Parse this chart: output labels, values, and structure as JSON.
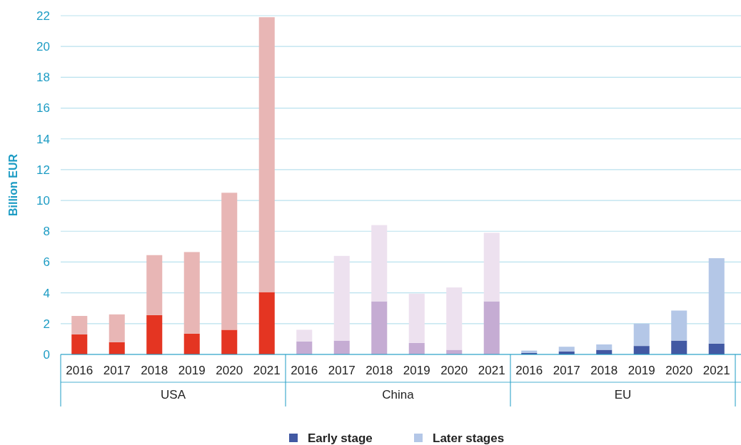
{
  "chart_data": {
    "type": "bar",
    "stacked": true,
    "ylabel": "Billion EUR",
    "categories": [
      "2016",
      "2017",
      "2018",
      "2019",
      "2020",
      "2021",
      "2016",
      "2017",
      "2018",
      "2019",
      "2020",
      "2021",
      "2016",
      "2017",
      "2018",
      "2019",
      "2020",
      "2021"
    ],
    "annotations": [
      "USA",
      "China",
      "EU"
    ],
    "series": [
      {
        "name": "Early stage",
        "color": "#4259a3",
        "colors": [
          "#e43522",
          "#e43522",
          "#e43522",
          "#e43522",
          "#e43522",
          "#e43522",
          "#c5acd3",
          "#c5acd3",
          "#c5acd3",
          "#c5acd3",
          "#c5acd3",
          "#c5acd3",
          "#4259a3",
          "#4259a3",
          "#4259a3",
          "#4259a3",
          "#4259a3",
          "#4259a3"
        ],
        "values": [
          1.3,
          0.8,
          2.55,
          1.35,
          1.6,
          4.05,
          0.85,
          0.9,
          3.45,
          0.75,
          0.3,
          3.45,
          0.1,
          0.2,
          0.3,
          0.55,
          0.9,
          0.7
        ]
      },
      {
        "name": "Later stages",
        "color": "#b4c7e7",
        "colors": [
          "#e8b6b5",
          "#e8b6b5",
          "#e8b6b5",
          "#e8b6b5",
          "#e8b6b5",
          "#e8b6b5",
          "#ede1ef",
          "#ede1ef",
          "#ede1ef",
          "#ede1ef",
          "#ede1ef",
          "#ede1ef",
          "#b4c7e7",
          "#b4c7e7",
          "#b4c7e7",
          "#b4c7e7",
          "#b4c7e7",
          "#b4c7e7"
        ],
        "values": [
          1.2,
          1.8,
          3.9,
          5.3,
          8.9,
          17.85,
          0.75,
          5.5,
          4.95,
          3.2,
          4.05,
          4.45,
          0.15,
          0.3,
          0.35,
          1.45,
          1.95,
          5.55
        ]
      }
    ],
    "ylim": [
      0,
      22
    ],
    "yticks": [
      0,
      2,
      4,
      6,
      8,
      10,
      12,
      14,
      16,
      18,
      20,
      22
    ],
    "grid": "y",
    "legend": "bottom"
  }
}
